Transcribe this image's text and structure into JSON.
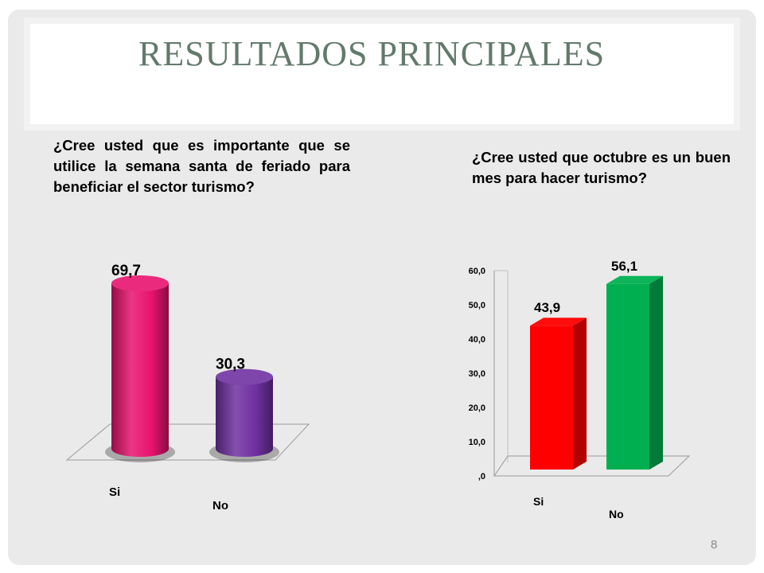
{
  "slide": {
    "title": "RESULTADOS PRINCIPALES",
    "page_number": "8"
  },
  "questions": [
    "¿Cree usted que es importante que se utilice la semana santa de feriado para beneficiar el sector turismo?",
    "¿Cree usted que  octubre es un buen mes para hacer turismo?"
  ],
  "chart_data": [
    {
      "type": "bar",
      "style": "3d-cylinder",
      "categories": [
        "Si",
        "No"
      ],
      "values": [
        69.7,
        30.3
      ],
      "data_labels": [
        "69,7",
        "30,3"
      ],
      "colors": [
        "#e8136e",
        "#7030a0"
      ],
      "ylim": [
        0,
        70
      ],
      "grid": false
    },
    {
      "type": "bar",
      "style": "3d-box",
      "categories": [
        "Si",
        "No"
      ],
      "values": [
        43.9,
        56.1
      ],
      "data_labels": [
        "43,9",
        "56,1"
      ],
      "colors": [
        "#ff0000",
        "#00b050"
      ],
      "ylim": [
        0,
        60
      ],
      "yticks": [
        ",0",
        "10,0",
        "20,0",
        "30,0",
        "40,0",
        "50,0",
        "60,0"
      ],
      "grid": false
    }
  ]
}
